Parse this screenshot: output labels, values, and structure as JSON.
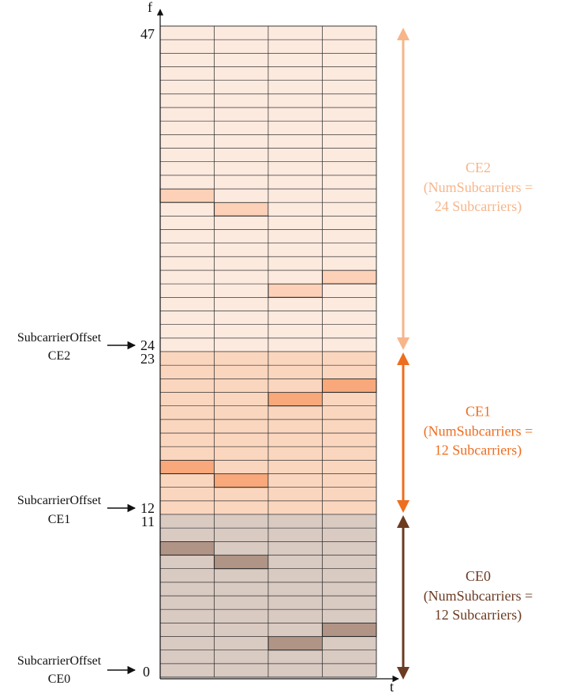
{
  "axes": {
    "f_label": "f",
    "t_label": "t"
  },
  "tick_labels": {
    "top": "47",
    "ce2_start": "24",
    "ce1_end": "23",
    "ce1_start": "12",
    "ce0_end": "11",
    "bottom": "0"
  },
  "offsets": [
    {
      "line1": "SubcarrierOffset",
      "line2": "CE2",
      "row": 24
    },
    {
      "line1": "SubcarrierOffset",
      "line2": "CE1",
      "row": 12
    },
    {
      "line1": "SubcarrierOffset",
      "line2": "CE0",
      "row": 0
    }
  ],
  "grid": {
    "rows": 48,
    "cols": 4
  },
  "groups": [
    {
      "id": "CE2",
      "name": "CE2",
      "detail_line1": "(NumSubcarriers =",
      "detail_line2": "24 Subcarriers)",
      "first_row": 24,
      "last_row": 47,
      "fill": "#fdeadf",
      "highlight": "#fcd1b8",
      "text_color": "#f7b58a",
      "arrow_color": "#f7b58a",
      "highlighted_cells": [
        {
          "col": 0,
          "row": 35
        },
        {
          "col": 1,
          "row": 34
        },
        {
          "col": 2,
          "row": 28
        },
        {
          "col": 3,
          "row": 29
        }
      ]
    },
    {
      "id": "CE1",
      "name": "CE1",
      "detail_line1": "(NumSubcarriers =",
      "detail_line2": "12 Subcarriers)",
      "first_row": 12,
      "last_row": 23,
      "fill": "#fbd6bf",
      "highlight": "#f8a87a",
      "text_color": "#ee6d1f",
      "arrow_color": "#ee6d1f",
      "highlighted_cells": [
        {
          "col": 0,
          "row": 15
        },
        {
          "col": 1,
          "row": 14
        },
        {
          "col": 2,
          "row": 20
        },
        {
          "col": 3,
          "row": 21
        }
      ]
    },
    {
      "id": "CE0",
      "name": "CE0",
      "detail_line1": "(NumSubcarriers =",
      "detail_line2": "12 Subcarriers)",
      "first_row": 0,
      "last_row": 11,
      "fill": "#d9cac2",
      "highlight": "#b09486",
      "text_color": "#6b3b22",
      "arrow_color": "#6b3b22",
      "highlighted_cells": [
        {
          "col": 0,
          "row": 9
        },
        {
          "col": 1,
          "row": 8
        },
        {
          "col": 2,
          "row": 2
        },
        {
          "col": 3,
          "row": 3
        }
      ]
    }
  ]
}
